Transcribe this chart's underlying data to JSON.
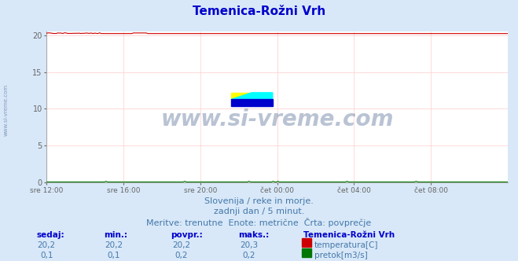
{
  "title": "Temenica-Rožni Vrh",
  "bg_color": "#d8e8f8",
  "plot_bg_color": "#ffffff",
  "grid_color": "#ffcccc",
  "x_labels": [
    "sre 12:00",
    "sre 16:00",
    "sre 20:00",
    "čet 00:00",
    "čet 04:00",
    "čet 08:00"
  ],
  "ylim_max": 20.5,
  "yticks": [
    0,
    5,
    10,
    15,
    20
  ],
  "temp_color": "#cc0000",
  "flow_color": "#007700",
  "watermark_color": "#1a3a6e",
  "subtitle1": "Slovenija / reke in morje.",
  "subtitle2": "zadnji dan / 5 minut.",
  "subtitle3": "Meritve: trenutne  Enote: metrične  Črta: povprečje",
  "label_sedaj": "sedaj:",
  "label_min": "min.:",
  "label_povpr": "povpr.:",
  "label_maks": "maks.:",
  "label_station": "Temenica-Rožni Vrh",
  "label_temp": "temperatura[C]",
  "label_flow": "pretok[m3/s]",
  "temp_sedaj": "20,2",
  "temp_min": "20,2",
  "temp_povpr": "20,2",
  "temp_maks": "20,3",
  "flow_sedaj": "0,1",
  "flow_min": "0,1",
  "flow_povpr": "0,2",
  "flow_maks": "0,2",
  "temp_value": 20.2,
  "flow_value": 0.1,
  "temp_max_value": 20.3,
  "flow_max_value": 0.2,
  "n_points": 288,
  "watermark": "www.si-vreme.com",
  "left_watermark": "www.si-vreme.com",
  "title_color": "#0000cc",
  "subtitle_color": "#4477aa",
  "table_header_color": "#0000cc",
  "table_value_color": "#4477aa"
}
